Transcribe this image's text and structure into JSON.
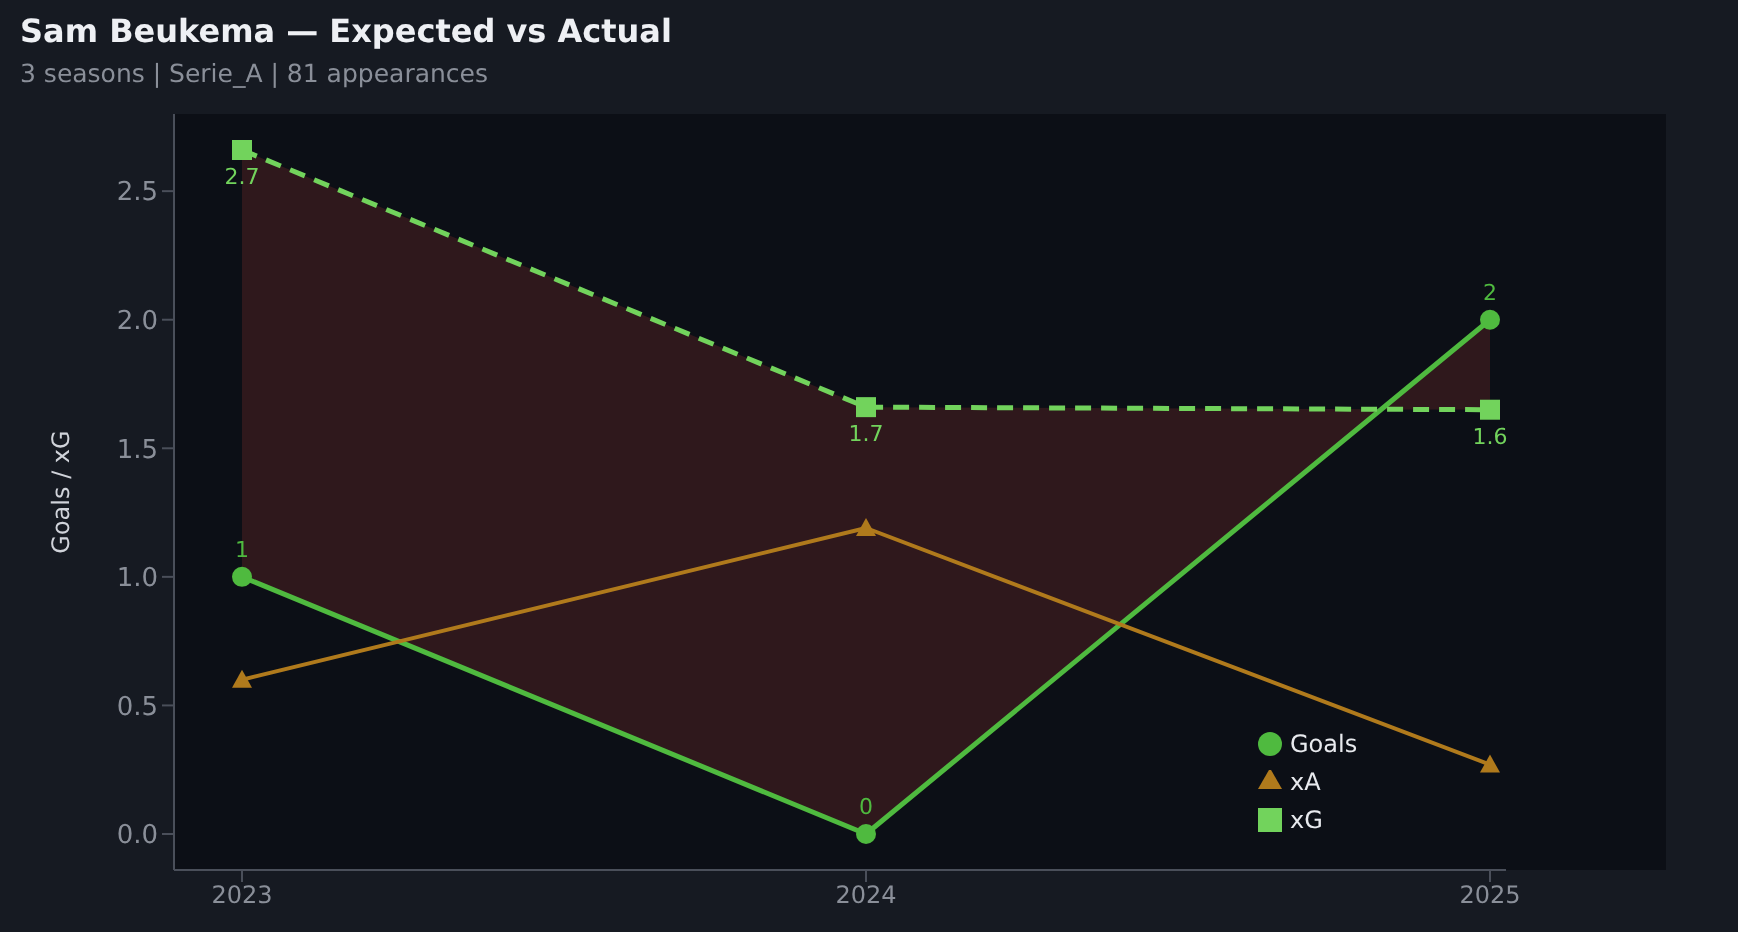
{
  "chart_data": {
    "type": "line",
    "title": "Sam Beukema — Expected vs Actual",
    "subtitle": "3 seasons | Serie_A | 81 appearances",
    "ylabel": "Goals / xG",
    "categories": [
      "2023",
      "2024",
      "2025"
    ],
    "series": [
      {
        "name": "Goals",
        "color": "#4fba3f",
        "values": [
          1,
          0,
          2
        ],
        "marker": "circle",
        "line_style": "solid",
        "value_labels": [
          "1",
          "0",
          "2"
        ]
      },
      {
        "name": "xG",
        "color": "#72d35c",
        "values": [
          2.66,
          1.66,
          1.65
        ],
        "marker": "square",
        "line_style": "dashed",
        "value_labels": [
          "2.7",
          "1.7",
          "1.6"
        ],
        "lower": [
          1,
          0,
          2
        ],
        "upper": [
          2.66,
          1.66,
          1.65
        ]
      },
      {
        "name": "xA",
        "color": "#b07a1c",
        "values": [
          0.6,
          1.19,
          0.27
        ],
        "marker": "triangle",
        "line_style": "solid"
      }
    ],
    "ylim": [
      -0.14,
      2.8
    ],
    "yticks": [
      {
        "value": 0,
        "label": "0.0"
      },
      {
        "value": 0.5,
        "label": "0.5"
      },
      {
        "value": 1,
        "label": "1.0"
      },
      {
        "value": 1.5,
        "label": "1.5"
      },
      {
        "value": 2,
        "label": "2.0"
      },
      {
        "value": 2.5,
        "label": "2.5"
      }
    ],
    "grid": false,
    "legend": "bottom right"
  }
}
